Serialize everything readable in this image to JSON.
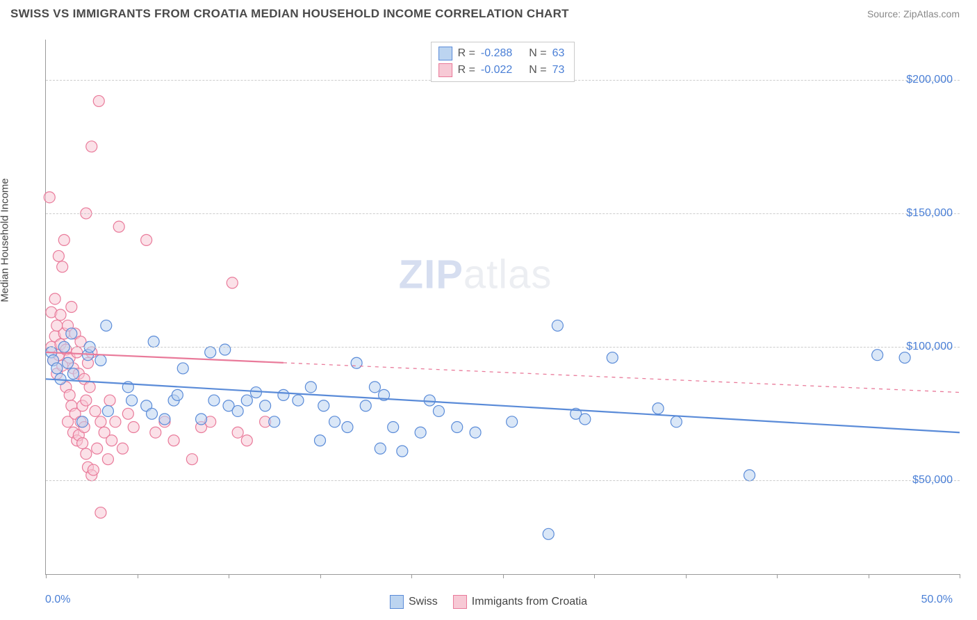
{
  "header": {
    "title": "SWISS VS IMMIGRANTS FROM CROATIA MEDIAN HOUSEHOLD INCOME CORRELATION CHART",
    "source": "Source: ZipAtlas.com"
  },
  "chart": {
    "type": "scatter",
    "y_axis_label": "Median Household Income",
    "x_min_label": "0.0%",
    "x_max_label": "50.0%",
    "xlim": [
      0,
      50
    ],
    "ylim": [
      15000,
      215000
    ],
    "y_ticks": [
      50000,
      100000,
      150000,
      200000
    ],
    "y_tick_labels": [
      "$50,000",
      "$100,000",
      "$150,000",
      "$200,000"
    ],
    "x_tick_positions": [
      0,
      5,
      10,
      15,
      20,
      25,
      30,
      35,
      40,
      45,
      50
    ],
    "grid_color": "#cccccc",
    "background_color": "#ffffff",
    "marker_radius": 8,
    "marker_opacity": 0.55,
    "watermark_text_bold": "ZIP",
    "watermark_text_rest": "atlas",
    "series": [
      {
        "name": "Swiss",
        "color_fill": "#bcd4f0",
        "color_stroke": "#5a8bd8",
        "r_value": "-0.288",
        "n_value": "63",
        "trend": {
          "x1": 0,
          "y1": 88000,
          "x2": 50,
          "y2": 68000,
          "solid_until_x": 50
        },
        "points": [
          [
            0.3,
            98000
          ],
          [
            0.4,
            95000
          ],
          [
            0.6,
            92000
          ],
          [
            0.8,
            88000
          ],
          [
            1.0,
            100000
          ],
          [
            1.2,
            94000
          ],
          [
            1.4,
            105000
          ],
          [
            1.5,
            90000
          ],
          [
            2.0,
            72000
          ],
          [
            2.3,
            97000
          ],
          [
            2.4,
            100000
          ],
          [
            3.0,
            95000
          ],
          [
            3.3,
            108000
          ],
          [
            3.4,
            76000
          ],
          [
            4.5,
            85000
          ],
          [
            4.7,
            80000
          ],
          [
            5.5,
            78000
          ],
          [
            5.8,
            75000
          ],
          [
            5.9,
            102000
          ],
          [
            6.5,
            73000
          ],
          [
            7.0,
            80000
          ],
          [
            7.2,
            82000
          ],
          [
            7.5,
            92000
          ],
          [
            8.5,
            73000
          ],
          [
            9.0,
            98000
          ],
          [
            9.2,
            80000
          ],
          [
            9.8,
            99000
          ],
          [
            10.0,
            78000
          ],
          [
            10.5,
            76000
          ],
          [
            11.0,
            80000
          ],
          [
            11.5,
            83000
          ],
          [
            12.0,
            78000
          ],
          [
            12.5,
            72000
          ],
          [
            13.0,
            82000
          ],
          [
            13.8,
            80000
          ],
          [
            14.5,
            85000
          ],
          [
            15.0,
            65000
          ],
          [
            15.2,
            78000
          ],
          [
            15.8,
            72000
          ],
          [
            16.5,
            70000
          ],
          [
            17.0,
            94000
          ],
          [
            17.5,
            78000
          ],
          [
            18.0,
            85000
          ],
          [
            18.3,
            62000
          ],
          [
            18.5,
            82000
          ],
          [
            19.0,
            70000
          ],
          [
            19.5,
            61000
          ],
          [
            20.5,
            68000
          ],
          [
            21.0,
            80000
          ],
          [
            21.5,
            76000
          ],
          [
            22.5,
            70000
          ],
          [
            23.5,
            68000
          ],
          [
            25.5,
            72000
          ],
          [
            27.5,
            30000
          ],
          [
            28.0,
            108000
          ],
          [
            29.0,
            75000
          ],
          [
            29.5,
            73000
          ],
          [
            31.0,
            96000
          ],
          [
            33.5,
            77000
          ],
          [
            34.5,
            72000
          ],
          [
            38.5,
            52000
          ],
          [
            45.5,
            97000
          ],
          [
            47.0,
            96000
          ]
        ]
      },
      {
        "name": "Immigants from Croatia",
        "color_fill": "#f7c9d5",
        "color_stroke": "#e97a9a",
        "r_value": "-0.022",
        "n_value": "73",
        "trend": {
          "x1": 0,
          "y1": 98000,
          "x2": 50,
          "y2": 83000,
          "solid_until_x": 13
        },
        "points": [
          [
            0.2,
            156000
          ],
          [
            0.3,
            100000
          ],
          [
            0.3,
            113000
          ],
          [
            0.4,
            95000
          ],
          [
            0.5,
            118000
          ],
          [
            0.5,
            104000
          ],
          [
            0.6,
            90000
          ],
          [
            0.6,
            108000
          ],
          [
            0.7,
            97000
          ],
          [
            0.7,
            134000
          ],
          [
            0.8,
            101000
          ],
          [
            0.8,
            112000
          ],
          [
            0.9,
            130000
          ],
          [
            0.9,
            93000
          ],
          [
            1.0,
            105000
          ],
          [
            1.0,
            140000
          ],
          [
            1.1,
            85000
          ],
          [
            1.1,
            99000
          ],
          [
            1.2,
            108000
          ],
          [
            1.2,
            72000
          ],
          [
            1.3,
            96000
          ],
          [
            1.3,
            82000
          ],
          [
            1.4,
            78000
          ],
          [
            1.4,
            115000
          ],
          [
            1.5,
            92000
          ],
          [
            1.5,
            68000
          ],
          [
            1.6,
            105000
          ],
          [
            1.6,
            75000
          ],
          [
            1.7,
            98000
          ],
          [
            1.7,
            65000
          ],
          [
            1.8,
            67000
          ],
          [
            1.8,
            90000
          ],
          [
            1.9,
            72000
          ],
          [
            1.9,
            102000
          ],
          [
            2.0,
            78000
          ],
          [
            2.0,
            64000
          ],
          [
            2.1,
            88000
          ],
          [
            2.1,
            70000
          ],
          [
            2.2,
            80000
          ],
          [
            2.2,
            60000
          ],
          [
            2.3,
            94000
          ],
          [
            2.3,
            55000
          ],
          [
            2.4,
            85000
          ],
          [
            2.5,
            52000
          ],
          [
            2.5,
            98000
          ],
          [
            2.6,
            54000
          ],
          [
            2.7,
            76000
          ],
          [
            2.8,
            62000
          ],
          [
            2.9,
            192000
          ],
          [
            3.0,
            38000
          ],
          [
            3.0,
            72000
          ],
          [
            2.5,
            175000
          ],
          [
            2.2,
            150000
          ],
          [
            3.2,
            68000
          ],
          [
            3.4,
            58000
          ],
          [
            3.5,
            80000
          ],
          [
            3.6,
            65000
          ],
          [
            3.8,
            72000
          ],
          [
            4.0,
            145000
          ],
          [
            4.2,
            62000
          ],
          [
            4.5,
            75000
          ],
          [
            4.8,
            70000
          ],
          [
            5.5,
            140000
          ],
          [
            6.0,
            68000
          ],
          [
            6.5,
            72000
          ],
          [
            7.0,
            65000
          ],
          [
            8.0,
            58000
          ],
          [
            8.5,
            70000
          ],
          [
            9.0,
            72000
          ],
          [
            10.2,
            124000
          ],
          [
            10.5,
            68000
          ],
          [
            11.0,
            65000
          ],
          [
            12.0,
            72000
          ]
        ]
      }
    ],
    "bottom_legend": [
      {
        "swatch": "blue",
        "label": "Swiss"
      },
      {
        "swatch": "pink",
        "label": "Immigants from Croatia"
      }
    ]
  }
}
